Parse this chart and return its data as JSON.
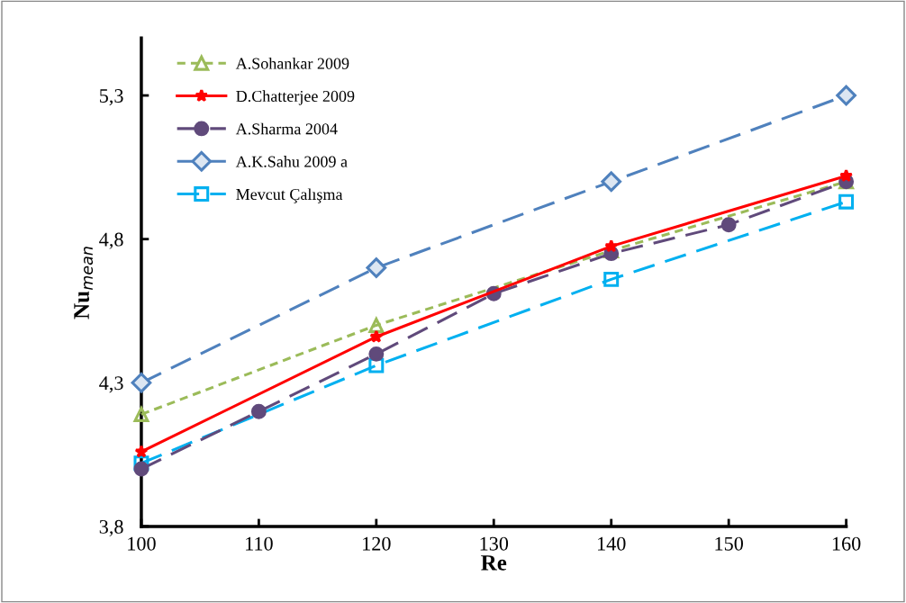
{
  "chart_data": {
    "type": "line",
    "xlabel": "Re",
    "ylabel": "Nu$_{mean}$",
    "xlim": [
      100,
      160
    ],
    "xticks": [
      100,
      110,
      120,
      130,
      140,
      150,
      160
    ],
    "ylim": [
      3.8,
      5.5
    ],
    "yticks": [
      {
        "value": 3.8,
        "label": "3,8"
      },
      {
        "value": 4.3,
        "label": "4,3"
      },
      {
        "value": 4.8,
        "label": "4,8"
      },
      {
        "value": 5.3,
        "label": "5,3"
      }
    ],
    "grid": false,
    "legend": "top left",
    "series": [
      {
        "name": "A.Sohankar 2009",
        "color": "#9bbb59",
        "marker": "triangle",
        "line_style": "dotted",
        "x": [
          100,
          120,
          140,
          160
        ],
        "values": [
          4.19,
          4.5,
          4.76,
          5.0
        ]
      },
      {
        "name": "D.Chatterjee 2009",
        "color": "#ff0000",
        "marker": "star",
        "line_style": "solid",
        "x": [
          100,
          120,
          140,
          160
        ],
        "values": [
          4.06,
          4.46,
          4.775,
          5.02
        ]
      },
      {
        "name": "A.Sharma 2004",
        "color": "#604a7b",
        "marker": "circle",
        "line_style": "dashed",
        "x": [
          100,
          110,
          120,
          130,
          140,
          150,
          160
        ],
        "values": [
          4.0,
          4.2,
          4.4,
          4.61,
          4.75,
          4.85,
          5.0
        ]
      },
      {
        "name": "A.K.Sahu 2009 a",
        "color": "#4f81bd",
        "marker": "diamond",
        "line_style": "dashed",
        "x": [
          100,
          120,
          140,
          160
        ],
        "values": [
          4.3,
          4.7,
          5.0,
          5.3
        ]
      },
      {
        "name": "Mevcut Çalışma",
        "color": "#00b0f0",
        "marker": "square",
        "line_style": "dashed",
        "x": [
          100,
          120,
          140,
          160
        ],
        "values": [
          4.02,
          4.36,
          4.66,
          4.93
        ]
      }
    ]
  }
}
